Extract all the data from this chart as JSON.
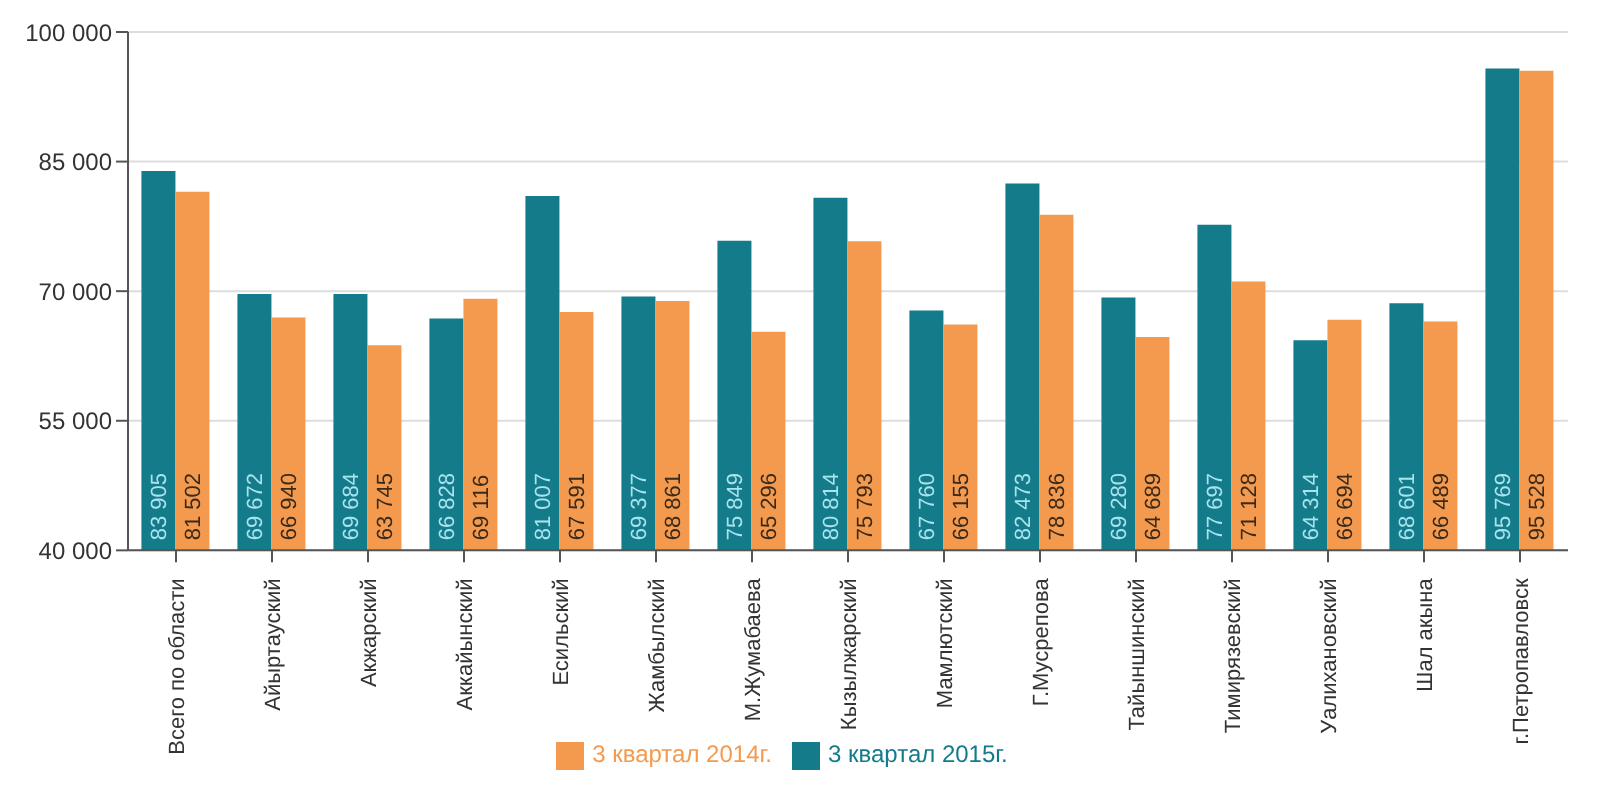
{
  "chart_data": {
    "type": "bar",
    "categories": [
      "Всего по области",
      "Айыртауский",
      "Акжарский",
      "Аккайынский",
      "Есильский",
      "Жамбылский",
      "М.Жумабаева",
      "Кызылжарский",
      "Мамлютский",
      "Г.Мусрепова",
      "Тайыншинский",
      "Тимирязевский",
      "Уалихановский",
      "Шал акына",
      "г.Петропавловск"
    ],
    "series": [
      {
        "name": "3 квартал 2015г.",
        "color": "#137b8a",
        "values": [
          83905,
          69672,
          69684,
          66828,
          81007,
          69377,
          75849,
          80814,
          67760,
          82473,
          69280,
          77697,
          64314,
          68601,
          95769
        ],
        "value_labels": [
          "83 905",
          "69 672",
          "69 684",
          "66 828",
          "81 007",
          "69 377",
          "75 849",
          "80 814",
          "67 760",
          "82 473",
          "69 280",
          "77 697",
          "64 314",
          "68 601",
          "95 769"
        ]
      },
      {
        "name": "3 квартал 2014г.",
        "color": "#f49a4e",
        "values": [
          81502,
          66940,
          63745,
          69116,
          67591,
          68861,
          65296,
          75793,
          66155,
          78836,
          64689,
          71128,
          66694,
          66489,
          95528
        ],
        "value_labels": [
          "81 502",
          "66 940",
          "63 745",
          "69 116",
          "67 591",
          "68 861",
          "65 296",
          "75 793",
          "66 155",
          "78 836",
          "64 689",
          "71 128",
          "66 694",
          "66 489",
          "95 528"
        ]
      }
    ],
    "ylim": [
      40000,
      100000
    ],
    "yticks": [
      {
        "value": 40000,
        "label": "40 000"
      },
      {
        "value": 55000,
        "label": "55 000"
      },
      {
        "value": 70000,
        "label": "70 000"
      },
      {
        "value": 85000,
        "label": "85 000"
      },
      {
        "value": 100000,
        "label": "100 000"
      }
    ],
    "grid": "y",
    "legend": "bottom"
  }
}
